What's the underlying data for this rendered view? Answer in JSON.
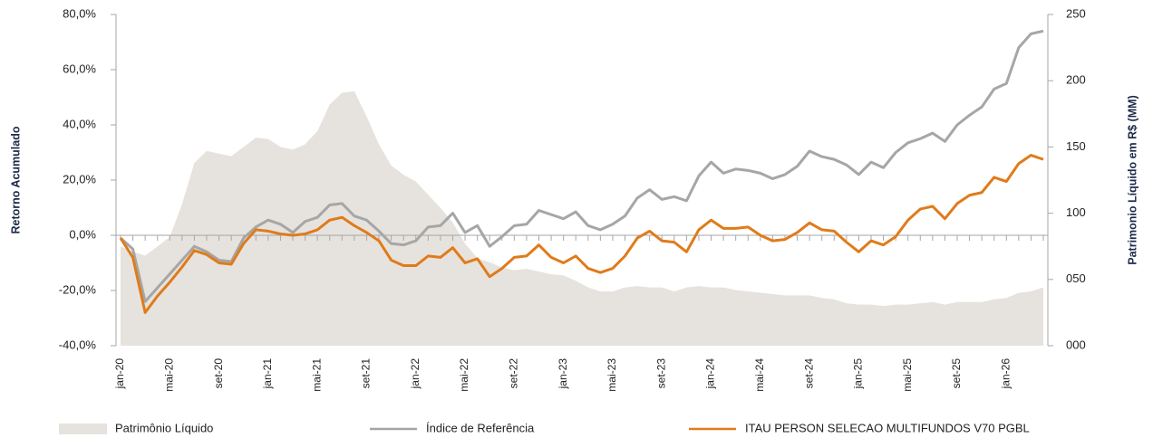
{
  "chart_data": {
    "type": "line",
    "y_axis_label": "Retorno Acumulado",
    "y2_axis_label": "Patrimonio Líquido em R$ (MM)",
    "categories": [
      "jan-20",
      null,
      null,
      null,
      "mai-20",
      null,
      null,
      null,
      "set-20",
      null,
      null,
      null,
      "jan-21",
      null,
      null,
      null,
      "mai-21",
      null,
      null,
      null,
      "set-21",
      null,
      null,
      null,
      "jan-22",
      null,
      null,
      null,
      "mai-22",
      null,
      null,
      null,
      "set-22",
      null,
      null,
      null,
      "jan-23",
      null,
      null,
      null,
      "mai-23",
      null,
      null,
      null,
      "set-23",
      null,
      null,
      null,
      "jan-24",
      null,
      null,
      null,
      "mai-24",
      null,
      null,
      null,
      "set-24",
      null,
      null,
      null,
      "jan-25",
      null,
      null,
      null,
      "mai-25",
      null,
      null,
      null,
      "set-25",
      null,
      null,
      null,
      "jan-26",
      null,
      null,
      null
    ],
    "series": [
      {
        "name": "Patrimônio Líquido",
        "type": "area",
        "axis": "y2",
        "color": "#e6e3de",
        "values": [
          75,
          71,
          68,
          75,
          82,
          107,
          138,
          147,
          145,
          143,
          150,
          157,
          156,
          150,
          148,
          152,
          162,
          182,
          191,
          192,
          173,
          152,
          136,
          129,
          124,
          114,
          104,
          93,
          77,
          66,
          63,
          59,
          57,
          58,
          56,
          54,
          53,
          49,
          44,
          41,
          41,
          44,
          45,
          44,
          44,
          41,
          44,
          45,
          44,
          44,
          42,
          41,
          40,
          39,
          38,
          38,
          38,
          36,
          35,
          32,
          31,
          31,
          30,
          31,
          31,
          32,
          33,
          31,
          33,
          33,
          33,
          35,
          36,
          40,
          41,
          44
        ]
      },
      {
        "name": "Índice de Referência",
        "type": "line",
        "color": "#a6a6a6",
        "values": [
          -1,
          -5,
          -24,
          -19,
          -14,
          -9,
          -4,
          -6,
          -9,
          -9.5,
          -1,
          3,
          5.5,
          4,
          1,
          5,
          6.5,
          11,
          11.5,
          7,
          5.5,
          1.5,
          -3,
          -3.5,
          -2,
          3,
          3.5,
          8,
          1,
          3.5,
          -4,
          -0.5,
          3.5,
          4,
          9,
          7.5,
          6,
          8.5,
          3.5,
          2,
          4,
          7,
          13.5,
          16.5,
          13,
          14,
          12.5,
          21.5,
          26.5,
          22.5,
          24,
          23.5,
          22.5,
          20.5,
          22,
          25,
          30.5,
          28.5,
          27.5,
          25.5,
          22,
          26.5,
          24.5,
          30,
          33.5,
          35,
          37,
          34,
          40,
          43.5,
          46.5,
          53,
          55,
          68,
          73,
          74
        ]
      },
      {
        "name": "ITAU PERSON SELECAO MULTIFUNDOS V70 PGBL",
        "type": "line",
        "color": "#e07b1a",
        "values": [
          -1,
          -8,
          -28,
          -22,
          -17,
          -11.5,
          -5.5,
          -7,
          -10,
          -10.5,
          -3,
          2,
          1.5,
          0.5,
          0,
          0.5,
          2,
          5.5,
          6.5,
          3.5,
          1,
          -2,
          -9,
          -11,
          -11,
          -7.5,
          -8,
          -4.5,
          -10,
          -8.5,
          -15,
          -12,
          -8,
          -7.5,
          -3.5,
          -8,
          -10,
          -7.5,
          -12,
          -13.5,
          -12,
          -7.5,
          -1,
          1.5,
          -2,
          -2.5,
          -6,
          2,
          5.5,
          2.5,
          2.5,
          3,
          0,
          -2,
          -1.5,
          1,
          4.5,
          2,
          1.5,
          -2.5,
          -6,
          -2,
          -3.5,
          -0.5,
          5.5,
          9.5,
          10.5,
          6,
          11.5,
          14.5,
          15.5,
          21,
          19.5,
          26,
          29,
          27.5
        ]
      }
    ],
    "ylim": [
      -40,
      80
    ],
    "yticks": [
      {
        "value": -40,
        "label": "-40,0%"
      },
      {
        "value": -20,
        "label": "-20,0%"
      },
      {
        "value": 0,
        "label": "0,0%"
      },
      {
        "value": 20,
        "label": "20,0%"
      },
      {
        "value": 40,
        "label": "40,0%"
      },
      {
        "value": 60,
        "label": "60,0%"
      },
      {
        "value": 80,
        "label": "80,0%"
      }
    ],
    "y2lim": [
      0,
      250
    ],
    "y2ticks": [
      {
        "value": 0,
        "label": "000"
      },
      {
        "value": 50,
        "label": "050"
      },
      100,
      150,
      200,
      250
    ],
    "legend": "bottom"
  }
}
